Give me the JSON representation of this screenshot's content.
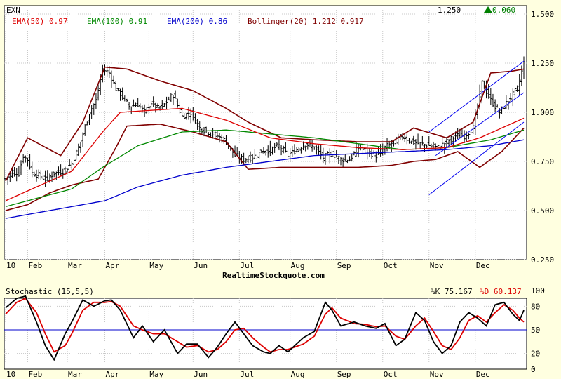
{
  "chart_data": [
    {
      "type": "ohlc",
      "symbol": "EXN",
      "last_price": "1.250",
      "change": "0.060",
      "change_direction": "up",
      "watermark": "RealtimeStockquote.com",
      "x_ticks": [
        "10",
        "Feb",
        "Mar",
        "Apr",
        "May",
        "Jun",
        "Jul",
        "Aug",
        "Sep",
        "Oct",
        "Nov",
        "Dec"
      ],
      "y_ticks": [
        "1.500",
        "1.250",
        "1.000",
        "0.750",
        "0.500",
        "0.250"
      ],
      "ylim": [
        0.25,
        1.5
      ],
      "grid": true,
      "indicators": [
        {
          "label": "EMA(50)",
          "value": "0.97",
          "color": "#dd0000"
        },
        {
          "label": "EMA(100)",
          "value": "0.91",
          "color": "#008800"
        },
        {
          "label": "EMA(200)",
          "value": "0.86",
          "color": "#0000cc"
        },
        {
          "label": "Bollinger(20)",
          "value": "1.212 0.917",
          "color": "#800000"
        }
      ],
      "colors": {
        "price": "#000000",
        "ema50": "#dd0000",
        "ema100": "#008800",
        "ema200": "#0000cc",
        "bollinger": "#800000",
        "trend": "#0000ee",
        "up": "#008000"
      },
      "month_index": [
        0,
        10,
        28,
        45,
        65,
        85,
        106,
        129,
        150,
        171,
        192,
        213,
        235
      ],
      "close_anchors": [
        [
          0,
          0.66
        ],
        [
          3,
          0.7
        ],
        [
          6,
          0.69
        ],
        [
          8,
          0.78
        ],
        [
          10,
          0.76
        ],
        [
          12,
          0.69
        ],
        [
          15,
          0.68
        ],
        [
          18,
          0.66
        ],
        [
          22,
          0.69
        ],
        [
          26,
          0.7
        ],
        [
          30,
          0.74
        ],
        [
          34,
          0.85
        ],
        [
          38,
          1.0
        ],
        [
          41,
          1.06
        ],
        [
          44,
          1.22
        ],
        [
          47,
          1.2
        ],
        [
          50,
          1.12
        ],
        [
          53,
          1.08
        ],
        [
          56,
          1.03
        ],
        [
          60,
          1.04
        ],
        [
          63,
          1.0
        ],
        [
          66,
          1.05
        ],
        [
          69,
          1.02
        ],
        [
          72,
          1.04
        ],
        [
          76,
          1.09
        ],
        [
          80,
          0.98
        ],
        [
          84,
          1.0
        ],
        [
          88,
          0.92
        ],
        [
          92,
          0.9
        ],
        [
          96,
          0.88
        ],
        [
          100,
          0.85
        ],
        [
          104,
          0.78
        ],
        [
          108,
          0.76
        ],
        [
          112,
          0.77
        ],
        [
          116,
          0.8
        ],
        [
          120,
          0.81
        ],
        [
          124,
          0.83
        ],
        [
          128,
          0.78
        ],
        [
          132,
          0.81
        ],
        [
          136,
          0.84
        ],
        [
          140,
          0.82
        ],
        [
          144,
          0.77
        ],
        [
          148,
          0.79
        ],
        [
          152,
          0.76
        ],
        [
          156,
          0.76
        ],
        [
          160,
          0.82
        ],
        [
          164,
          0.8
        ],
        [
          168,
          0.78
        ],
        [
          172,
          0.82
        ],
        [
          176,
          0.85
        ],
        [
          180,
          0.88
        ],
        [
          184,
          0.85
        ],
        [
          188,
          0.84
        ],
        [
          192,
          0.83
        ],
        [
          196,
          0.82
        ],
        [
          200,
          0.85
        ],
        [
          204,
          0.88
        ],
        [
          208,
          0.88
        ],
        [
          212,
          0.92
        ],
        [
          216,
          1.15
        ],
        [
          220,
          1.06
        ],
        [
          224,
          1.0
        ],
        [
          228,
          1.06
        ],
        [
          232,
          1.12
        ],
        [
          235,
          1.25
        ]
      ],
      "ema50_anchors": [
        [
          0,
          0.55
        ],
        [
          30,
          0.7
        ],
        [
          44,
          0.9
        ],
        [
          52,
          1.0
        ],
        [
          80,
          1.02
        ],
        [
          100,
          0.96
        ],
        [
          120,
          0.87
        ],
        [
          140,
          0.84
        ],
        [
          160,
          0.82
        ],
        [
          180,
          0.81
        ],
        [
          200,
          0.82
        ],
        [
          215,
          0.87
        ],
        [
          225,
          0.92
        ],
        [
          235,
          0.97
        ]
      ],
      "ema100_anchors": [
        [
          0,
          0.52
        ],
        [
          30,
          0.61
        ],
        [
          44,
          0.72
        ],
        [
          60,
          0.83
        ],
        [
          80,
          0.9
        ],
        [
          100,
          0.91
        ],
        [
          120,
          0.89
        ],
        [
          140,
          0.87
        ],
        [
          160,
          0.84
        ],
        [
          180,
          0.81
        ],
        [
          200,
          0.82
        ],
        [
          220,
          0.86
        ],
        [
          235,
          0.91
        ]
      ],
      "ema200_anchors": [
        [
          0,
          0.46
        ],
        [
          20,
          0.5
        ],
        [
          45,
          0.55
        ],
        [
          60,
          0.62
        ],
        [
          80,
          0.68
        ],
        [
          100,
          0.72
        ],
        [
          120,
          0.75
        ],
        [
          140,
          0.78
        ],
        [
          160,
          0.79
        ],
        [
          180,
          0.8
        ],
        [
          200,
          0.81
        ],
        [
          220,
          0.83
        ],
        [
          235,
          0.86
        ]
      ],
      "bb_upper_anchors": [
        [
          0,
          0.65
        ],
        [
          10,
          0.87
        ],
        [
          25,
          0.78
        ],
        [
          35,
          0.95
        ],
        [
          45,
          1.23
        ],
        [
          55,
          1.22
        ],
        [
          70,
          1.16
        ],
        [
          85,
          1.11
        ],
        [
          100,
          1.02
        ],
        [
          110,
          0.95
        ],
        [
          125,
          0.87
        ],
        [
          140,
          0.86
        ],
        [
          160,
          0.85
        ],
        [
          175,
          0.85
        ],
        [
          185,
          0.92
        ],
        [
          200,
          0.87
        ],
        [
          212,
          0.95
        ],
        [
          220,
          1.2
        ],
        [
          230,
          1.21
        ],
        [
          235,
          1.22
        ]
      ],
      "bb_lower_anchors": [
        [
          0,
          0.5
        ],
        [
          10,
          0.53
        ],
        [
          20,
          0.59
        ],
        [
          30,
          0.63
        ],
        [
          42,
          0.66
        ],
        [
          50,
          0.82
        ],
        [
          55,
          0.93
        ],
        [
          70,
          0.94
        ],
        [
          85,
          0.9
        ],
        [
          100,
          0.85
        ],
        [
          110,
          0.71
        ],
        [
          125,
          0.72
        ],
        [
          140,
          0.72
        ],
        [
          160,
          0.72
        ],
        [
          175,
          0.73
        ],
        [
          185,
          0.75
        ],
        [
          195,
          0.76
        ],
        [
          205,
          0.8
        ],
        [
          215,
          0.72
        ],
        [
          225,
          0.8
        ],
        [
          235,
          0.92
        ]
      ],
      "trendlines": [
        {
          "from": [
            192,
            0.9
          ],
          "to": [
            235,
            1.26
          ]
        },
        {
          "from": [
            192,
            0.58
          ],
          "to": [
            235,
            0.95
          ]
        },
        {
          "from": [
            195,
            0.78
          ],
          "to": [
            235,
            1.1
          ]
        }
      ]
    },
    {
      "type": "line",
      "title": "Stochastic (15,5,5)",
      "k_label": "%K",
      "k_value": "75.167",
      "d_label": "%D",
      "d_value": "60.137",
      "y_ticks": [
        "100",
        "80",
        "50",
        "20",
        "0"
      ],
      "ylim": [
        0,
        100
      ],
      "reference_line": 50,
      "x_ticks": [
        "10",
        "Feb",
        "Mar",
        "Apr",
        "May",
        "Jun",
        "Jul",
        "Aug",
        "Sep",
        "Oct",
        "Nov",
        "Dec"
      ],
      "colors": {
        "k": "#000000",
        "d": "#dd0000",
        "ref": "#0000cc"
      },
      "series": [
        {
          "name": "%K",
          "anchors": [
            [
              0,
              78
            ],
            [
              5,
              90
            ],
            [
              9,
              93
            ],
            [
              14,
              60
            ],
            [
              18,
              30
            ],
            [
              22,
              12
            ],
            [
              27,
              45
            ],
            [
              30,
              60
            ],
            [
              35,
              88
            ],
            [
              40,
              80
            ],
            [
              45,
              87
            ],
            [
              48,
              88
            ],
            [
              52,
              75
            ],
            [
              58,
              40
            ],
            [
              62,
              55
            ],
            [
              67,
              35
            ],
            [
              72,
              50
            ],
            [
              78,
              20
            ],
            [
              82,
              32
            ],
            [
              87,
              32
            ],
            [
              92,
              15
            ],
            [
              96,
              28
            ],
            [
              100,
              45
            ],
            [
              104,
              60
            ],
            [
              108,
              45
            ],
            [
              112,
              30
            ],
            [
              117,
              22
            ],
            [
              120,
              20
            ],
            [
              124,
              30
            ],
            [
              128,
              22
            ],
            [
              135,
              40
            ],
            [
              140,
              48
            ],
            [
              145,
              85
            ],
            [
              148,
              75
            ],
            [
              152,
              55
            ],
            [
              158,
              60
            ],
            [
              163,
              55
            ],
            [
              168,
              52
            ],
            [
              172,
              58
            ],
            [
              177,
              30
            ],
            [
              181,
              38
            ],
            [
              186,
              72
            ],
            [
              190,
              62
            ],
            [
              194,
              35
            ],
            [
              198,
              20
            ],
            [
              202,
              30
            ],
            [
              206,
              60
            ],
            [
              210,
              72
            ],
            [
              214,
              65
            ],
            [
              218,
              55
            ],
            [
              222,
              82
            ],
            [
              226,
              85
            ],
            [
              230,
              70
            ],
            [
              233,
              62
            ],
            [
              235,
              75
            ]
          ]
        },
        {
          "name": "%D",
          "anchors": [
            [
              0,
              70
            ],
            [
              5,
              85
            ],
            [
              9,
              90
            ],
            [
              14,
              72
            ],
            [
              18,
              45
            ],
            [
              22,
              22
            ],
            [
              27,
              30
            ],
            [
              30,
              45
            ],
            [
              35,
              75
            ],
            [
              40,
              85
            ],
            [
              45,
              85
            ],
            [
              48,
              86
            ],
            [
              52,
              80
            ],
            [
              58,
              55
            ],
            [
              62,
              50
            ],
            [
              67,
              45
            ],
            [
              72,
              45
            ],
            [
              78,
              35
            ],
            [
              82,
              28
            ],
            [
              87,
              30
            ],
            [
              92,
              22
            ],
            [
              96,
              25
            ],
            [
              100,
              35
            ],
            [
              104,
              50
            ],
            [
              108,
              52
            ],
            [
              112,
              40
            ],
            [
              117,
              28
            ],
            [
              120,
              22
            ],
            [
              124,
              25
            ],
            [
              128,
              25
            ],
            [
              135,
              32
            ],
            [
              140,
              42
            ],
            [
              145,
              70
            ],
            [
              148,
              78
            ],
            [
              152,
              65
            ],
            [
              158,
              58
            ],
            [
              163,
              57
            ],
            [
              168,
              54
            ],
            [
              172,
              55
            ],
            [
              177,
              42
            ],
            [
              181,
              38
            ],
            [
              186,
              55
            ],
            [
              190,
              65
            ],
            [
              194,
              48
            ],
            [
              198,
              30
            ],
            [
              202,
              25
            ],
            [
              206,
              40
            ],
            [
              210,
              62
            ],
            [
              214,
              68
            ],
            [
              218,
              60
            ],
            [
              222,
              72
            ],
            [
              226,
              82
            ],
            [
              230,
              75
            ],
            [
              233,
              65
            ],
            [
              235,
              60
            ]
          ]
        }
      ]
    }
  ]
}
